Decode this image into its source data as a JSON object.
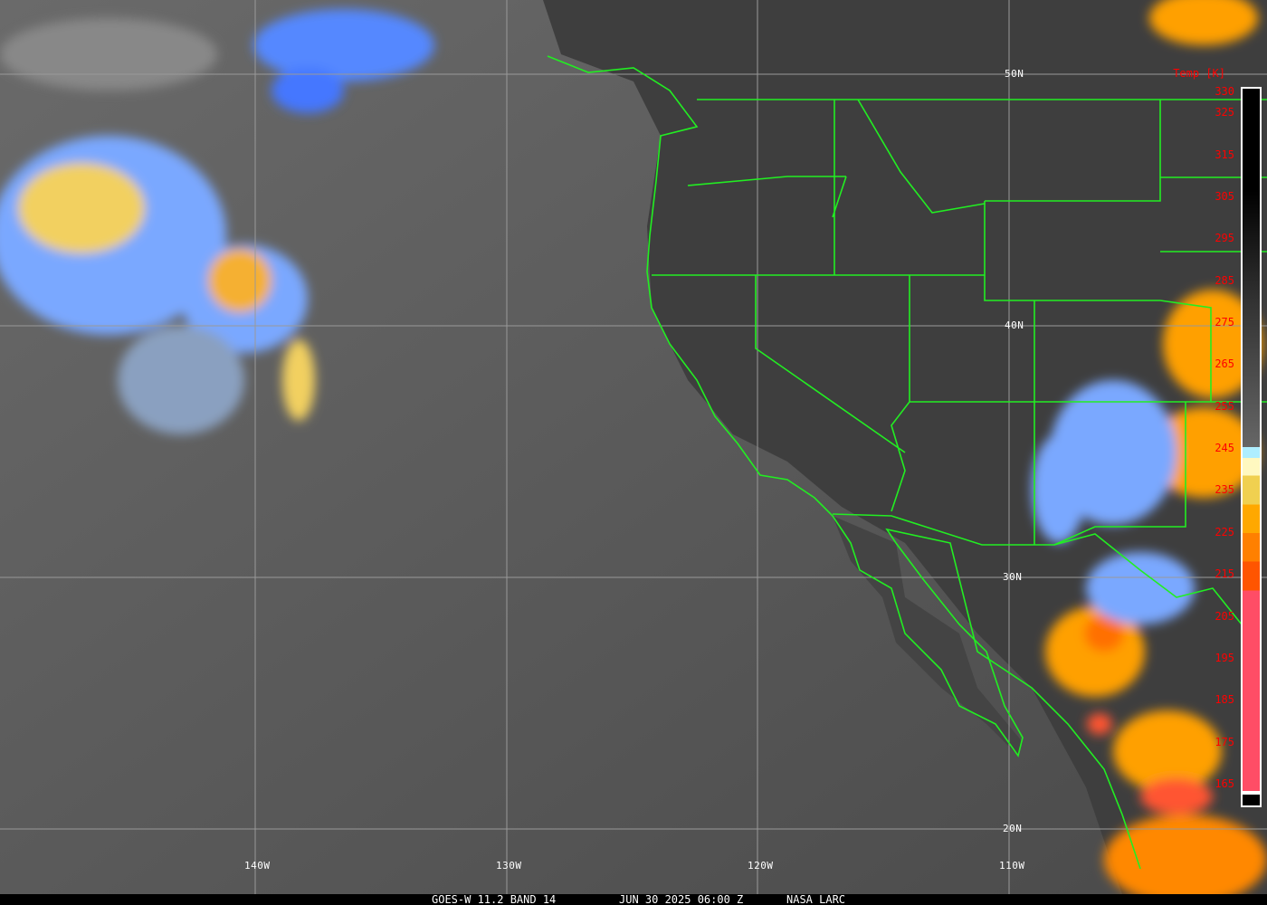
{
  "caption": {
    "satellite": "GOES-W 11.2 BAND 14",
    "datetime": "JUN 30 2025 06:00 Z",
    "source": "NASA LARC"
  },
  "grid": {
    "longitudes": [
      "140W",
      "130W",
      "120W",
      "110W"
    ],
    "latitudes": [
      "50N",
      "40N",
      "30N",
      "20N"
    ]
  },
  "colorbar": {
    "title": "Temp [K]",
    "ticks": [
      "330",
      "325",
      "315",
      "305",
      "295",
      "285",
      "275",
      "265",
      "255",
      "245",
      "235",
      "225",
      "215",
      "205",
      "195",
      "185",
      "175",
      "165"
    ],
    "range_k": [
      165,
      330
    ]
  },
  "colors": {
    "boundaries": "#22ee22",
    "gridlines": "#aaaaaa",
    "labels": "#ff0000"
  }
}
